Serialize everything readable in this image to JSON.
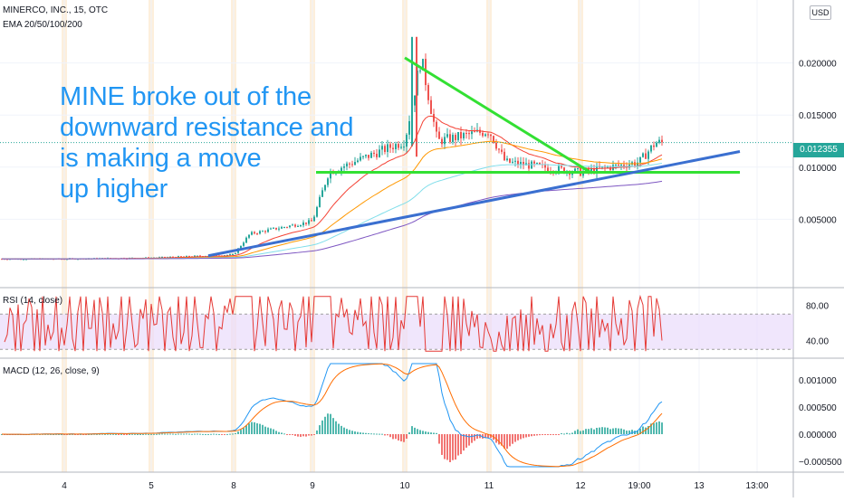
{
  "symbol": "MINERCO, INC., 15, OTC",
  "currency": "USD",
  "last_price": "0.012355",
  "indicators": {
    "ema_label": "EMA 20/50/100/200",
    "rsi_label": "RSI (14, close)",
    "macd_label": "MACD (12, 26, close, 9)"
  },
  "annotation_text": "MINE broke out of the\ndownward resistance and\nis making a move\nup higher",
  "colors": {
    "up": "#26a69a",
    "down": "#ef5350",
    "trendline_support": "#3a6fd0",
    "trendline_resistance": "#33e033",
    "annotation": "#2196f3",
    "rsi_band": "#e9dcfb",
    "rsi_line": "#e53935",
    "macd_line": "#2196f3",
    "signal_line": "#ff6d00",
    "session_highlight": "#fdebd3"
  },
  "chart_data": [
    {
      "type": "candlestick",
      "title": "MINERCO, INC., 15, OTC",
      "y_axis_ticks": [
        0.005,
        0.01,
        0.015,
        0.02
      ],
      "y_axis_labels": [
        "0.005000",
        "0.010000",
        "0.015000",
        "0.020000"
      ],
      "ylim": [
        0.0,
        0.025
      ],
      "x_axis_labels": [
        "4",
        "5",
        "8",
        "9",
        "10",
        "11",
        "12",
        "19:00",
        "13",
        "13:00"
      ],
      "ohlc_path": [
        {
          "day": "4",
          "price": 0.0012
        },
        {
          "day": "5",
          "price": 0.0013
        },
        {
          "day": "8",
          "price": 0.0016
        },
        {
          "day": "8",
          "price": 0.0036
        },
        {
          "day": "9",
          "price": 0.0048
        },
        {
          "day": "9",
          "price": 0.0095
        },
        {
          "day": "10",
          "price": 0.0125
        },
        {
          "day": "10",
          "price": 0.0205
        },
        {
          "day": "10",
          "price": 0.0125
        },
        {
          "day": "11",
          "price": 0.0135
        },
        {
          "day": "11",
          "price": 0.0105
        },
        {
          "day": "12",
          "price": 0.0095
        },
        {
          "day": "19:00",
          "price": 0.0105
        },
        {
          "day": "19:00",
          "price": 0.012355
        }
      ],
      "drawings": {
        "resistance_line": [
          {
            "day": "10",
            "price": 0.0205
          },
          {
            "day": "12",
            "price": 0.0095
          }
        ],
        "support_line": [
          {
            "day": "8",
            "price": 0.0015
          },
          {
            "day": "13",
            "price": 0.0115
          }
        ],
        "horizontal_level": 0.0095
      },
      "series": [
        {
          "name": "EMA 20/50/100/200"
        }
      ]
    },
    {
      "type": "line",
      "title": "RSI (14, close)",
      "y_axis_labels": [
        "80.00",
        "40.00"
      ],
      "y_axis_ticks": [
        80,
        40
      ],
      "band": [
        30,
        70
      ],
      "ylim": [
        20,
        100
      ]
    },
    {
      "type": "bar",
      "title": "MACD (12, 26, close, 9)",
      "y_axis_labels": [
        "0.001000",
        "0.000500",
        "0.000000",
        "−0.000500"
      ],
      "y_axis_ticks": [
        0.001,
        0.0005,
        0.0,
        -0.0005
      ],
      "ylim": [
        -0.0007,
        0.0014
      ]
    }
  ]
}
